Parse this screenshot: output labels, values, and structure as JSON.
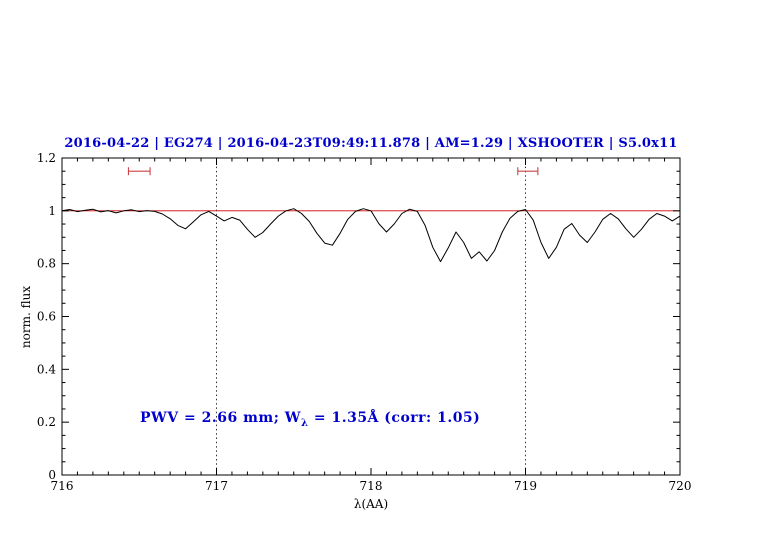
{
  "title": "2016-04-22 | EG274 | 2016-04-23T09:49:11.878 | AM=1.29 | XSHOOTER | S5.0x11",
  "annotation": {
    "pre": "PWV = 2.66 mm; W",
    "sub": "λ",
    "post": " = 1.35Å (corr: 1.05)"
  },
  "colors": {
    "title": "#0000cd",
    "annotation": "#0000cd",
    "reference_line": "#cc0000",
    "marker": "#cc4444",
    "spectrum": "#000000",
    "axis": "#000000"
  },
  "chart_data": {
    "type": "line",
    "title": "2016-04-22 | EG274 | 2016-04-23T09:49:11.878 | AM=1.29 | XSHOOTER | S5.0x11",
    "xlabel": "λ(AA)",
    "ylabel": "norm. flux",
    "xlim": [
      716,
      720
    ],
    "ylim": [
      0,
      1.2
    ],
    "x_ticks": [
      716,
      717,
      718,
      719,
      720
    ],
    "x_tick_labels": [
      "716",
      "717",
      "718",
      "719",
      "720"
    ],
    "y_ticks": [
      0,
      0.2,
      0.4,
      0.6,
      0.8,
      1,
      1.2
    ],
    "y_tick_labels": [
      "0",
      "0.2",
      "0.4",
      "0.6",
      "0.8",
      "1",
      "1.2"
    ],
    "grid": false,
    "legend": "none",
    "reference_lines": {
      "horizontal": [
        {
          "y": 1.0
        }
      ],
      "vertical_dotted": [
        717,
        719
      ]
    },
    "telluric_markers": [
      {
        "x1": 716.43,
        "x2": 716.57,
        "y": 1.15
      },
      {
        "x1": 718.95,
        "x2": 719.08,
        "y": 1.15
      }
    ],
    "annotation_text": "PWV = 2.66 mm; Wλ = 1.35Å (corr: 1.05)",
    "series": [
      {
        "name": "normalized spectrum",
        "x": [
          716.0,
          716.05,
          716.1,
          716.15,
          716.2,
          716.25,
          716.3,
          716.35,
          716.4,
          716.45,
          716.5,
          716.55,
          716.6,
          716.65,
          716.7,
          716.75,
          716.8,
          716.85,
          716.9,
          716.95,
          717.0,
          717.05,
          717.1,
          717.15,
          717.2,
          717.25,
          717.3,
          717.35,
          717.4,
          717.45,
          717.5,
          717.55,
          717.6,
          717.65,
          717.7,
          717.75,
          717.8,
          717.85,
          717.9,
          717.95,
          718.0,
          718.05,
          718.1,
          718.15,
          718.2,
          718.25,
          718.3,
          718.35,
          718.4,
          718.45,
          718.5,
          718.55,
          718.6,
          718.65,
          718.7,
          718.75,
          718.8,
          718.85,
          718.9,
          718.95,
          719.0,
          719.05,
          719.1,
          719.15,
          719.2,
          719.25,
          719.3,
          719.35,
          719.4,
          719.45,
          719.5,
          719.55,
          719.6,
          719.65,
          719.7,
          719.75,
          719.8,
          719.85,
          719.9,
          719.95,
          720.0
        ],
        "y": [
          1.0,
          1.005,
          0.997,
          1.002,
          1.006,
          0.996,
          1.001,
          0.992,
          1.0,
          1.004,
          0.997,
          1.001,
          0.998,
          0.988,
          0.97,
          0.945,
          0.932,
          0.958,
          0.985,
          0.998,
          0.98,
          0.962,
          0.975,
          0.965,
          0.93,
          0.9,
          0.918,
          0.95,
          0.98,
          1.0,
          1.008,
          0.99,
          0.96,
          0.915,
          0.878,
          0.87,
          0.915,
          0.968,
          0.998,
          1.008,
          1.0,
          0.952,
          0.92,
          0.95,
          0.99,
          1.006,
          0.998,
          0.945,
          0.862,
          0.808,
          0.86,
          0.92,
          0.88,
          0.82,
          0.845,
          0.81,
          0.85,
          0.92,
          0.972,
          0.998,
          1.005,
          0.965,
          0.88,
          0.82,
          0.862,
          0.93,
          0.952,
          0.908,
          0.88,
          0.92,
          0.968,
          0.99,
          0.97,
          0.932,
          0.9,
          0.93,
          0.968,
          0.99,
          0.98,
          0.962,
          0.98
        ]
      }
    ]
  }
}
